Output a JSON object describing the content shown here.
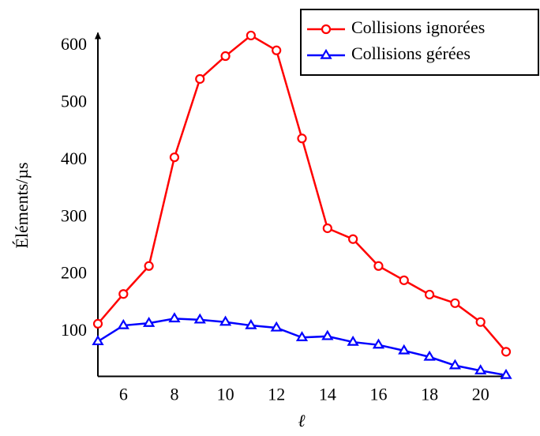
{
  "chart_data": {
    "type": "line",
    "xlabel": "ℓ",
    "ylabel": "Éléments/µs",
    "x": [
      5,
      6,
      7,
      8,
      9,
      10,
      11,
      12,
      13,
      14,
      15,
      16,
      17,
      18,
      19,
      20,
      21
    ],
    "series": [
      {
        "name": "Collisions ignorées",
        "color": "#ff0000",
        "marker": "circle",
        "values": [
          114,
          166,
          215,
          405,
          542,
          582,
          618,
          592,
          438,
          281,
          262,
          215,
          190,
          165,
          150,
          117,
          65
        ]
      },
      {
        "name": "Collisions gérées",
        "color": "#0000ff",
        "marker": "triangle",
        "values": [
          83,
          111,
          115,
          123,
          121,
          117,
          111,
          107,
          90,
          92,
          82,
          77,
          67,
          56,
          41,
          32,
          24
        ]
      }
    ],
    "xlim": [
      5,
      21
    ],
    "ylim": [
      22,
      620
    ],
    "xticks": [
      6,
      8,
      10,
      12,
      14,
      16,
      18,
      20
    ],
    "yticks": [
      100,
      200,
      300,
      400,
      500,
      600
    ],
    "legend": "upper right",
    "grid": false
  }
}
